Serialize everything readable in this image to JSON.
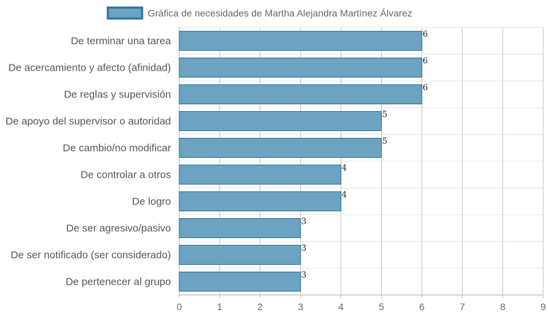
{
  "chart_data": {
    "type": "bar",
    "orientation": "horizontal",
    "title": "",
    "xlabel": "",
    "ylabel": "",
    "xlim": [
      0,
      9
    ],
    "x_ticks": [
      "0",
      "1",
      "2",
      "3",
      "4",
      "5",
      "6",
      "7",
      "8",
      "9"
    ],
    "grid": true,
    "legend_position": "top",
    "categories": [
      "De terminar una tarea",
      "De acercamiento y afecto (afinidad)",
      "De reglas y supervisión",
      "De apoyo del supervisor o autoridad",
      "De cambio/no modificar",
      "De controlar a otros",
      "De logro",
      "De ser agresivo/pasivo",
      "De ser notificado (ser considerado)",
      "De pertenecer al grupo"
    ],
    "series": [
      {
        "name": "Gráfica de necesidades de Martha Alejandra Martínez Álvarez",
        "color": "#6ba3c1",
        "border_color": "#2f7399",
        "values": [
          6,
          6,
          6,
          5,
          5,
          4,
          4,
          3,
          3,
          3
        ],
        "data_labels": [
          "6",
          "6",
          "6",
          "5",
          "5",
          "4",
          "4",
          "3",
          "3",
          "3"
        ]
      }
    ]
  }
}
